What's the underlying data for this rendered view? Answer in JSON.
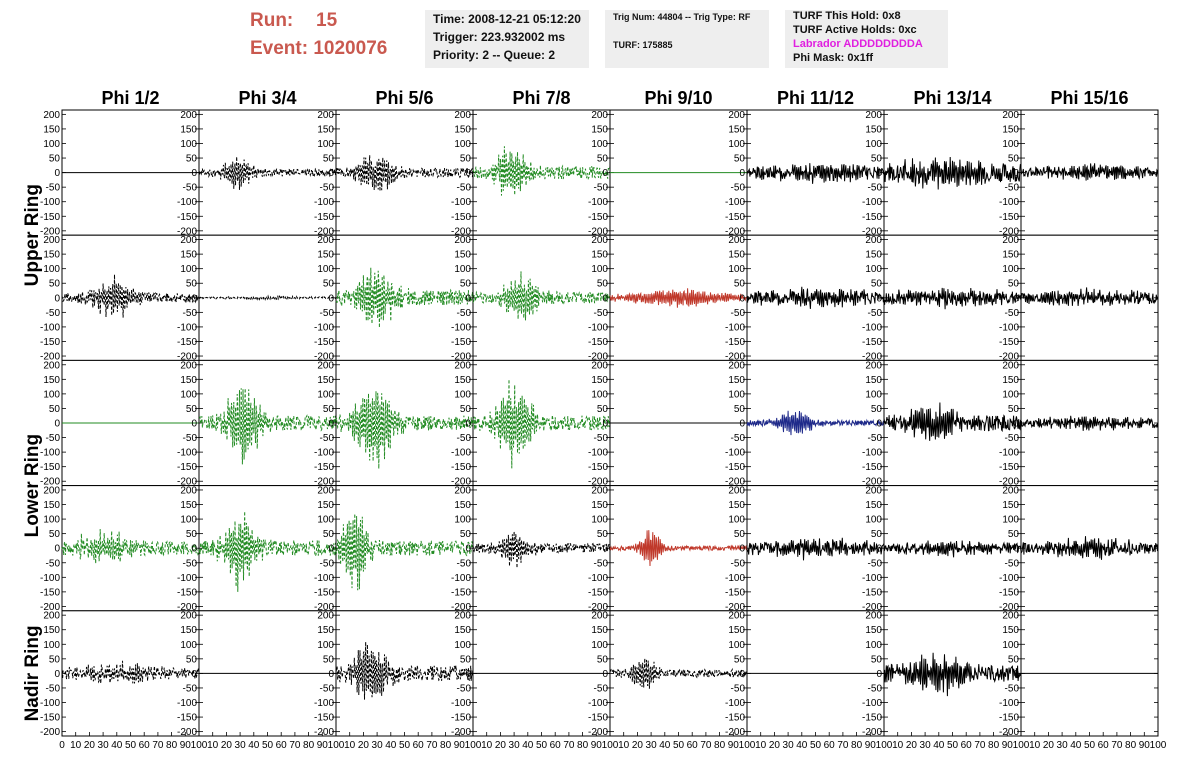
{
  "header": {
    "run_label": "Run:",
    "run_value": "15",
    "event_label": "Event:",
    "event_value": "1020076",
    "time": "Time: 2008-12-21 05:12:20",
    "trigger": "Trigger: 223.932002 ms",
    "priority": "Priority: 2 -- Queue: 2",
    "trig_num": "Trig Num: 44804 -- Trig Type: RF",
    "turf": "TURF: 175885",
    "turf_this_hold": "TURF This Hold: 0x8",
    "turf_active_holds": "TURF Active Holds: 0xc",
    "labrador": "Labrador ADDDDDDDDA",
    "phi_mask": "Phi Mask: 0x1ff",
    "labrador_color": "#e020e0",
    "run_color": "#c9594f"
  },
  "chart_data": {
    "type": "line",
    "columns": [
      "Phi 1/2",
      "Phi 3/4",
      "Phi 5/6",
      "Phi 7/8",
      "Phi 9/10",
      "Phi 11/12",
      "Phi 13/14",
      "Phi 15/16"
    ],
    "ring_labels": [
      {
        "text": "Upper Ring",
        "rows": [
          0,
          1
        ]
      },
      {
        "text": "Lower Ring",
        "rows": [
          2,
          3
        ]
      },
      {
        "text": "Nadir Ring",
        "rows": [
          4
        ]
      }
    ],
    "y_ticks": [
      200,
      150,
      100,
      50,
      0,
      -50,
      -100,
      -150,
      -200
    ],
    "ylim": [
      -215,
      215
    ],
    "xlim": [
      0,
      100
    ],
    "x_tick_labels": [
      "0",
      "10",
      "20",
      "30",
      "40",
      "50",
      "60",
      "70",
      "80",
      "90",
      "100"
    ],
    "styles": {
      "black_dash": {
        "color": "#000000",
        "dashed": true
      },
      "green_dash": {
        "color": "#228b22",
        "dashed": true
      },
      "black": {
        "color": "#000000",
        "dashed": false
      },
      "red": {
        "color": "#c0392b",
        "dashed": false
      },
      "blue": {
        "color": "#1f2a8a",
        "dashed": false
      },
      "green_flat": {
        "color": "#228b22",
        "dashed": false
      },
      "flat": {
        "color": "#000000",
        "dashed": false
      }
    },
    "panels": [
      [
        {
          "style": "flat",
          "amp": 0,
          "center": 0,
          "width": 0,
          "noise": 0,
          "seed": 1
        },
        {
          "style": "black_dash",
          "amp": 60,
          "center": 28,
          "width": 12,
          "noise": 15,
          "seed": 2
        },
        {
          "style": "black_dash",
          "amp": 70,
          "center": 30,
          "width": 14,
          "noise": 18,
          "seed": 3
        },
        {
          "style": "green_dash",
          "amp": 95,
          "center": 28,
          "width": 12,
          "noise": 25,
          "seed": 4
        },
        {
          "style": "green_flat",
          "amp": 0,
          "center": 0,
          "width": 0,
          "noise": 0,
          "seed": 5
        },
        {
          "style": "black",
          "amp": 25,
          "center": 50,
          "width": 40,
          "noise": 20,
          "seed": 6
        },
        {
          "style": "black",
          "amp": 40,
          "center": 40,
          "width": 30,
          "noise": 35,
          "seed": 7
        },
        {
          "style": "black",
          "amp": 20,
          "center": 50,
          "width": 40,
          "noise": 18,
          "seed": 8
        }
      ],
      [
        {
          "style": "black_dash",
          "amp": 70,
          "center": 38,
          "width": 16,
          "noise": 18,
          "seed": 9
        },
        {
          "style": "black_dash",
          "amp": 5,
          "center": 50,
          "width": 40,
          "noise": 2,
          "seed": 10
        },
        {
          "style": "green_dash",
          "amp": 110,
          "center": 30,
          "width": 14,
          "noise": 30,
          "seed": 11
        },
        {
          "style": "green_dash",
          "amp": 85,
          "center": 35,
          "width": 14,
          "noise": 22,
          "seed": 12
        },
        {
          "style": "red",
          "amp": 30,
          "center": 50,
          "width": 40,
          "noise": 8,
          "seed": 13
        },
        {
          "style": "black",
          "amp": 25,
          "center": 50,
          "width": 40,
          "noise": 20,
          "seed": 14
        },
        {
          "style": "black",
          "amp": 25,
          "center": 50,
          "width": 40,
          "noise": 22,
          "seed": 15
        },
        {
          "style": "black",
          "amp": 22,
          "center": 50,
          "width": 40,
          "noise": 20,
          "seed": 16
        }
      ],
      [
        {
          "style": "green_flat",
          "amp": 0,
          "center": 0,
          "width": 0,
          "noise": 0,
          "seed": 17
        },
        {
          "style": "green_dash",
          "amp": 150,
          "center": 32,
          "width": 12,
          "noise": 28,
          "seed": 18
        },
        {
          "style": "green_dash",
          "amp": 150,
          "center": 28,
          "width": 14,
          "noise": 28,
          "seed": 19
        },
        {
          "style": "green_dash",
          "amp": 140,
          "center": 30,
          "width": 14,
          "noise": 28,
          "seed": 20
        },
        {
          "style": "flat",
          "amp": 0,
          "center": 0,
          "width": 0,
          "noise": 0,
          "seed": 21
        },
        {
          "style": "blue",
          "amp": 45,
          "center": 35,
          "width": 14,
          "noise": 10,
          "seed": 22
        },
        {
          "style": "black",
          "amp": 55,
          "center": 35,
          "width": 20,
          "noise": 30,
          "seed": 23
        },
        {
          "style": "black",
          "amp": 18,
          "center": 50,
          "width": 40,
          "noise": 16,
          "seed": 24
        }
      ],
      [
        {
          "style": "green_dash",
          "amp": 55,
          "center": 30,
          "width": 20,
          "noise": 25,
          "seed": 25
        },
        {
          "style": "green_dash",
          "amp": 140,
          "center": 30,
          "width": 12,
          "noise": 30,
          "seed": 26
        },
        {
          "style": "green_dash",
          "amp": 150,
          "center": 14,
          "width": 10,
          "noise": 28,
          "seed": 27
        },
        {
          "style": "black_dash",
          "amp": 60,
          "center": 30,
          "width": 12,
          "noise": 18,
          "seed": 28
        },
        {
          "style": "red",
          "amp": 70,
          "center": 30,
          "width": 8,
          "noise": 8,
          "seed": 29
        },
        {
          "style": "black",
          "amp": 25,
          "center": 50,
          "width": 40,
          "noise": 22,
          "seed": 30
        },
        {
          "style": "black",
          "amp": 20,
          "center": 50,
          "width": 40,
          "noise": 16,
          "seed": 31
        },
        {
          "style": "black",
          "amp": 25,
          "center": 50,
          "width": 40,
          "noise": 22,
          "seed": 32
        }
      ],
      [
        {
          "style": "black_dash",
          "amp": 30,
          "center": 40,
          "width": 30,
          "noise": 20,
          "seed": 33
        },
        {
          "style": "flat",
          "amp": 0,
          "center": 0,
          "width": 0,
          "noise": 0,
          "seed": 34
        },
        {
          "style": "black_dash",
          "amp": 110,
          "center": 25,
          "width": 14,
          "noise": 30,
          "seed": 35
        },
        {
          "style": "flat",
          "amp": 0,
          "center": 0,
          "width": 0,
          "noise": 0,
          "seed": 36
        },
        {
          "style": "black_dash",
          "amp": 65,
          "center": 25,
          "width": 10,
          "noise": 15,
          "seed": 37
        },
        {
          "style": "flat",
          "amp": 0,
          "center": 0,
          "width": 0,
          "noise": 0,
          "seed": 38
        },
        {
          "style": "black",
          "amp": 60,
          "center": 40,
          "width": 25,
          "noise": 30,
          "seed": 39
        },
        {
          "style": "flat",
          "amp": 0,
          "center": 0,
          "width": 0,
          "noise": 0,
          "seed": 40
        }
      ]
    ]
  }
}
